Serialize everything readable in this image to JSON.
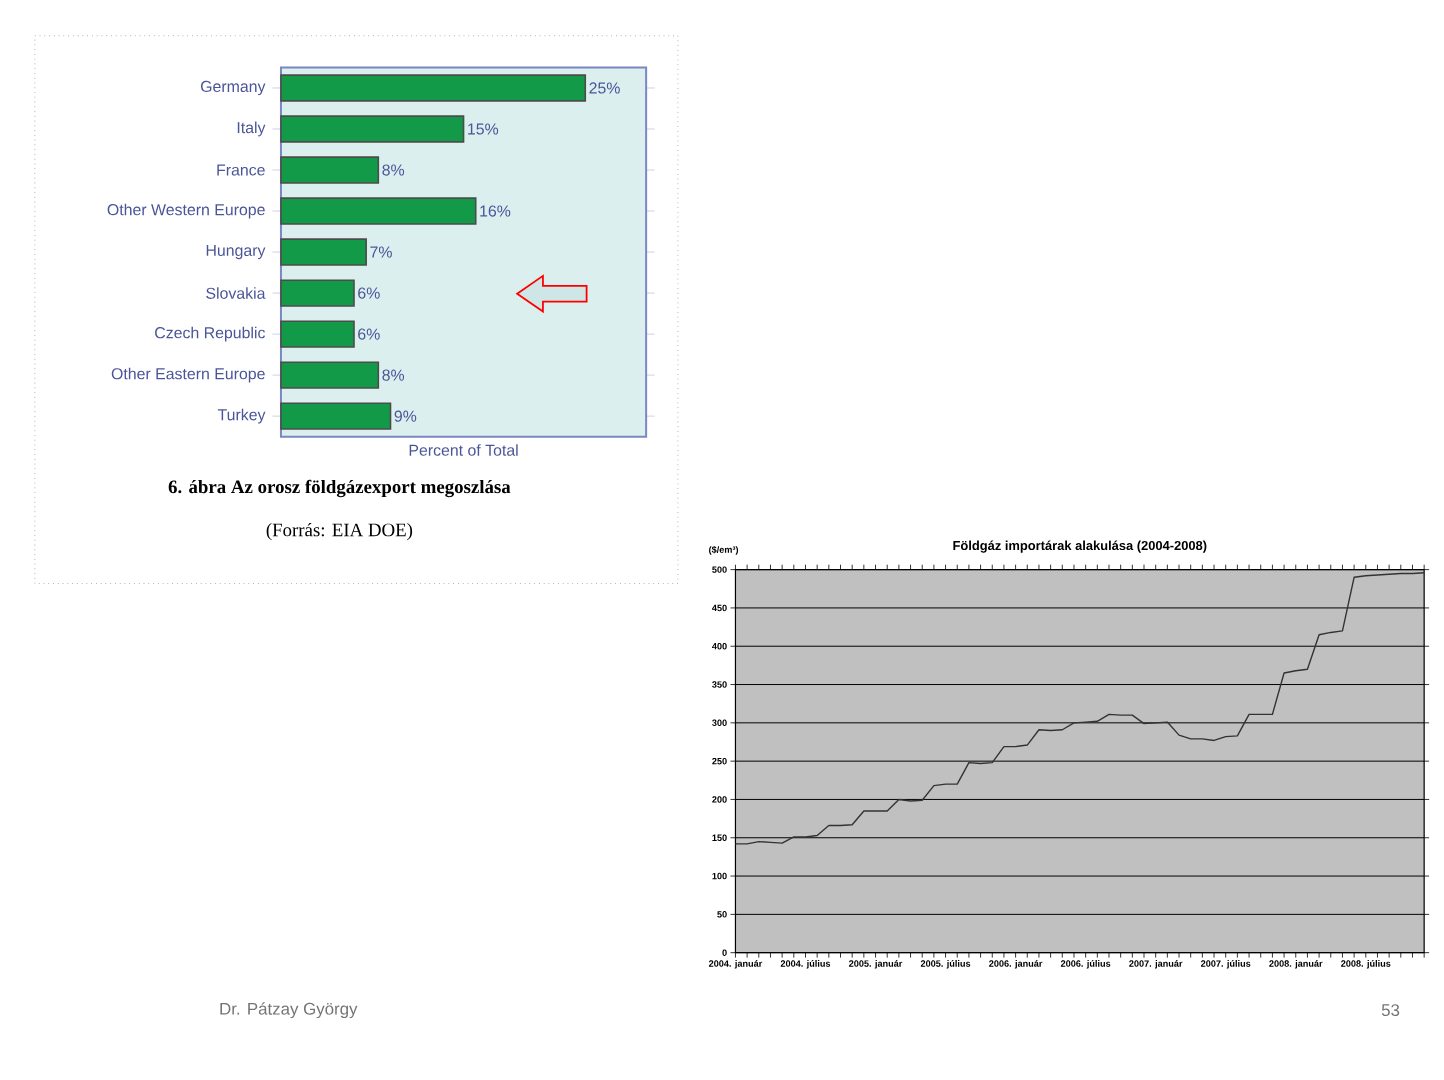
{
  "chart_data": [
    {
      "type": "bar",
      "orientation": "horizontal",
      "title": "6. ábra Az orosz földgázexport megoszlása",
      "annotations": [
        "(Forrás: EIA DOE)"
      ],
      "xlabel": "Percent of Total",
      "categories": [
        "Germany",
        "Italy",
        "France",
        "Other Western Europe",
        "Hungary",
        "Slovakia",
        "Czech Republic",
        "Other Eastern Europe",
        "Turkey"
      ],
      "values": [
        25,
        15,
        8,
        16,
        7,
        6,
        6,
        8,
        9
      ],
      "value_labels": [
        "25%",
        "15%",
        "8%",
        "16%",
        "7%",
        "6%",
        "6%",
        "8%",
        "9%"
      ],
      "color": "#129a48",
      "xlim": [
        0,
        30
      ],
      "tick_labels": "y"
    },
    {
      "type": "line",
      "title": "Földgáz importárak alakulása (2004-2008)",
      "ylabel": "($/em³)",
      "categories": [
        "2004. január",
        null,
        null,
        null,
        null,
        null,
        "2004. július",
        null,
        null,
        null,
        null,
        null,
        "2005. január",
        null,
        null,
        null,
        null,
        null,
        "2005. július",
        null,
        null,
        null,
        null,
        null,
        "2006. január",
        null,
        null,
        null,
        null,
        null,
        "2006. július",
        null,
        null,
        null,
        null,
        null,
        "2007. január",
        null,
        null,
        null,
        null,
        null,
        "2007. július",
        null,
        null,
        null,
        null,
        null,
        "2008. január",
        null,
        null,
        null,
        null,
        null,
        "2008. július",
        null,
        null,
        null,
        null,
        null
      ],
      "values": [
        142,
        142,
        145,
        144,
        143,
        151,
        151,
        153,
        166,
        166,
        167,
        185,
        185,
        185,
        200,
        198,
        199,
        218,
        220,
        220,
        248,
        247,
        248,
        269,
        269,
        271,
        291,
        290,
        291,
        300,
        301,
        302,
        311,
        310,
        310,
        299,
        300,
        301,
        284,
        279,
        279,
        277,
        282,
        283,
        311,
        311,
        311,
        365,
        368,
        370,
        415,
        418,
        420,
        490,
        492,
        493,
        494,
        495,
        495,
        496
      ],
      "color": "#333333",
      "ylim": [
        0,
        500
      ],
      "yticks": [
        0,
        50,
        100,
        150,
        200,
        250,
        300,
        350,
        400,
        450,
        500
      ],
      "grid": "y",
      "annotations": [
        "Dr. Pátzay György",
        "53"
      ]
    }
  ]
}
